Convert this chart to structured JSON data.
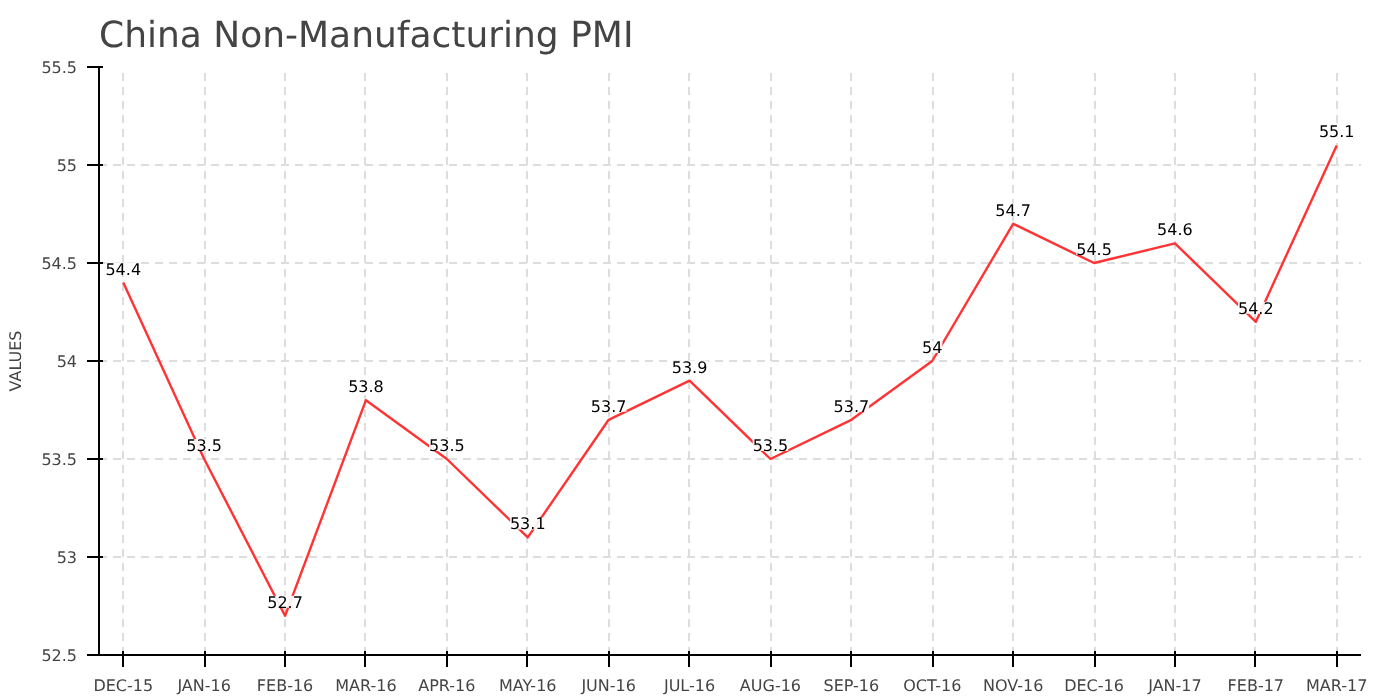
{
  "chart_data": {
    "type": "line",
    "title": "China Non-Manufacturing PMI",
    "ylabel": "VALUES",
    "categories": [
      "DEC-15",
      "JAN-16",
      "FEB-16",
      "MAR-16",
      "APR-16",
      "MAY-16",
      "JUN-16",
      "JUL-16",
      "AUG-16",
      "SEP-16",
      "OCT-16",
      "NOV-16",
      "DEC-16",
      "JAN-17",
      "FEB-17",
      "MAR-17"
    ],
    "series": [
      {
        "color": "#ff3333",
        "values": [
          54.4,
          53.5,
          52.7,
          53.8,
          53.5,
          53.1,
          53.7,
          53.9,
          53.5,
          53.7,
          54,
          54.7,
          54.5,
          54.6,
          54.2,
          55.1
        ]
      }
    ],
    "ylim": [
      52.5,
      55.5
    ],
    "yticks": [
      52.5,
      53,
      53.5,
      54,
      54.5,
      55,
      55.5
    ],
    "grid": true,
    "data_labels": true,
    "marker": "none",
    "line_style": "solid"
  }
}
